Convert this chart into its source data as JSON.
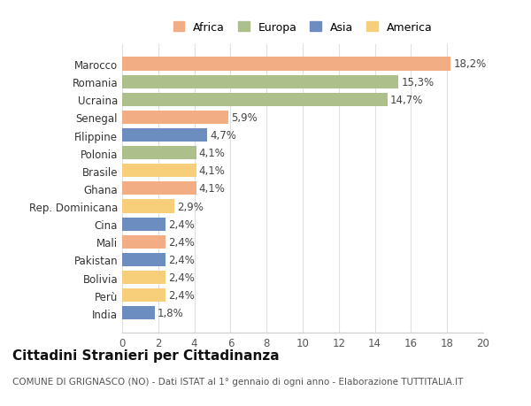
{
  "categories": [
    "Marocco",
    "Romania",
    "Ucraina",
    "Senegal",
    "Filippine",
    "Polonia",
    "Brasile",
    "Ghana",
    "Rep. Dominicana",
    "Cina",
    "Mali",
    "Pakistan",
    "Bolivia",
    "Perù",
    "India"
  ],
  "values": [
    18.2,
    15.3,
    14.7,
    5.9,
    4.7,
    4.1,
    4.1,
    4.1,
    2.9,
    2.4,
    2.4,
    2.4,
    2.4,
    2.4,
    1.8
  ],
  "labels": [
    "18,2%",
    "15,3%",
    "14,7%",
    "5,9%",
    "4,7%",
    "4,1%",
    "4,1%",
    "4,1%",
    "2,9%",
    "2,4%",
    "2,4%",
    "2,4%",
    "2,4%",
    "2,4%",
    "1,8%"
  ],
  "colors": [
    "#F2AD84",
    "#ADBF8A",
    "#ADBF8A",
    "#F2AD84",
    "#6C8DC0",
    "#ADBF8A",
    "#F7CE7A",
    "#F2AD84",
    "#F7CE7A",
    "#6C8DC0",
    "#F2AD84",
    "#6C8DC0",
    "#F7CE7A",
    "#F7CE7A",
    "#6C8DC0"
  ],
  "legend_labels": [
    "Africa",
    "Europa",
    "Asia",
    "America"
  ],
  "legend_colors": [
    "#F2AD84",
    "#ADBF8A",
    "#6C8DC0",
    "#F7CE7A"
  ],
  "xlim": [
    0,
    20
  ],
  "xticks": [
    0,
    2,
    4,
    6,
    8,
    10,
    12,
    14,
    16,
    18,
    20
  ],
  "title": "Cittadini Stranieri per Cittadinanza",
  "subtitle": "COMUNE DI GRIGNASCO (NO) - Dati ISTAT al 1° gennaio di ogni anno - Elaborazione TUTTITALIA.IT",
  "bg_color": "#ffffff",
  "grid_color": "#e0e0e0",
  "bar_height": 0.75,
  "label_fontsize": 8.5,
  "ytick_fontsize": 8.5,
  "xtick_fontsize": 8.5,
  "title_fontsize": 11,
  "subtitle_fontsize": 7.5
}
